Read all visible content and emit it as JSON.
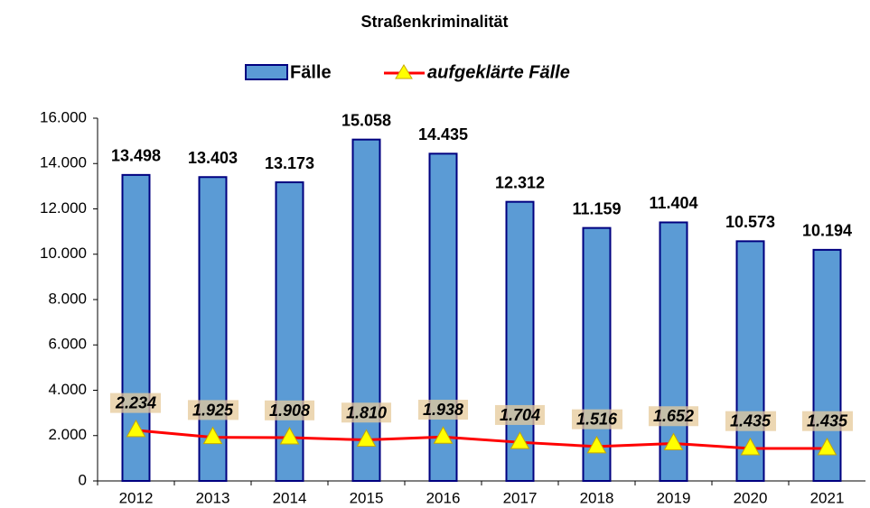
{
  "chart_data": {
    "type": "bar",
    "title": "Straßenkriminalität",
    "categories": [
      "2012",
      "2013",
      "2014",
      "2015",
      "2016",
      "2017",
      "2018",
      "2019",
      "2020",
      "2021"
    ],
    "series": [
      {
        "name": "Fälle",
        "type": "bar",
        "color": "#5b9bd5",
        "values": [
          13498,
          13403,
          13173,
          15058,
          14435,
          12312,
          11159,
          11404,
          10573,
          10194
        ],
        "value_labels": [
          "13.498",
          "13.403",
          "13.173",
          "15.058",
          "14.435",
          "12.312",
          "11.159",
          "11.404",
          "10.573",
          "10.194"
        ]
      },
      {
        "name": "aufgeklärte Fälle",
        "type": "line",
        "color": "#ff0000",
        "values": [
          2234,
          1925,
          1908,
          1810,
          1938,
          1704,
          1516,
          1652,
          1435,
          1435
        ],
        "value_labels": [
          "2.234",
          "1.925",
          "1.908",
          "1.810",
          "1.938",
          "1.704",
          "1.516",
          "1.652",
          "1.435",
          "1.435"
        ]
      }
    ],
    "ylim": [
      0,
      16000
    ],
    "yticks": [
      0,
      {
        "value": 2000,
        "label": "2.000"
      },
      {
        "value": 4000,
        "label": "4.000"
      },
      {
        "value": 6000,
        "label": "6.000"
      },
      {
        "value": 8000,
        "label": "8.000"
      },
      {
        "value": 10000,
        "label": "10.000"
      },
      {
        "value": 12000,
        "label": "12.000"
      },
      {
        "value": 14000,
        "label": "14.000"
      },
      {
        "value": 16000,
        "label": "16.000"
      }
    ],
    "grid": false
  }
}
